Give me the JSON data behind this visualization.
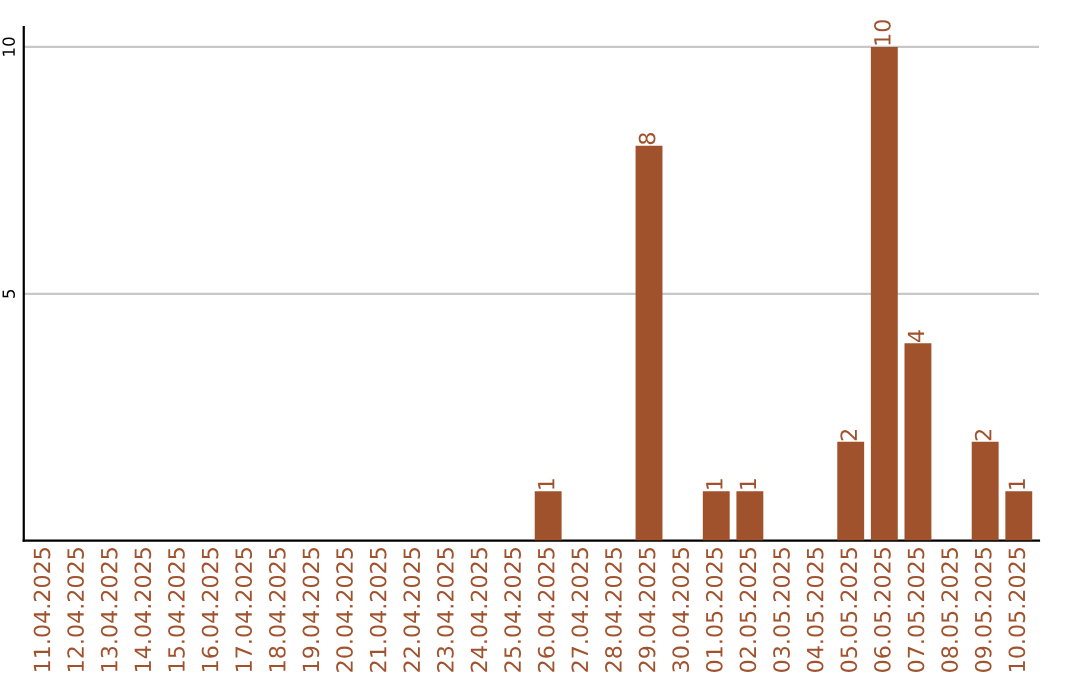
{
  "chart_data": {
    "type": "bar",
    "categories": [
      "11.04.2025",
      "12.04.2025",
      "13.04.2025",
      "14.04.2025",
      "15.04.2025",
      "16.04.2025",
      "17.04.2025",
      "18.04.2025",
      "19.04.2025",
      "20.04.2025",
      "21.04.2025",
      "22.04.2025",
      "23.04.2025",
      "24.04.2025",
      "25.04.2025",
      "26.04.2025",
      "27.04.2025",
      "28.04.2025",
      "29.04.2025",
      "30.04.2025",
      "01.05.2025",
      "02.05.2025",
      "03.05.2025",
      "04.05.2025",
      "05.05.2025",
      "06.05.2025",
      "07.05.2025",
      "08.05.2025",
      "09.05.2025",
      "10.05.2025"
    ],
    "values": [
      0,
      0,
      0,
      0,
      0,
      0,
      0,
      0,
      0,
      0,
      0,
      0,
      0,
      0,
      0,
      1,
      0,
      0,
      8,
      0,
      1,
      1,
      0,
      0,
      2,
      10,
      4,
      0,
      2,
      1
    ],
    "value_labels": [
      null,
      null,
      null,
      null,
      null,
      null,
      null,
      null,
      null,
      null,
      null,
      null,
      null,
      null,
      null,
      "1",
      null,
      null,
      "8",
      null,
      "1",
      "1",
      null,
      null,
      "2",
      "10",
      "4",
      null,
      "2",
      "1"
    ],
    "color": "#a0522d",
    "ylim": [
      0,
      10.4
    ],
    "yticks": [
      5,
      10
    ],
    "grid": "y",
    "legend": false
  }
}
